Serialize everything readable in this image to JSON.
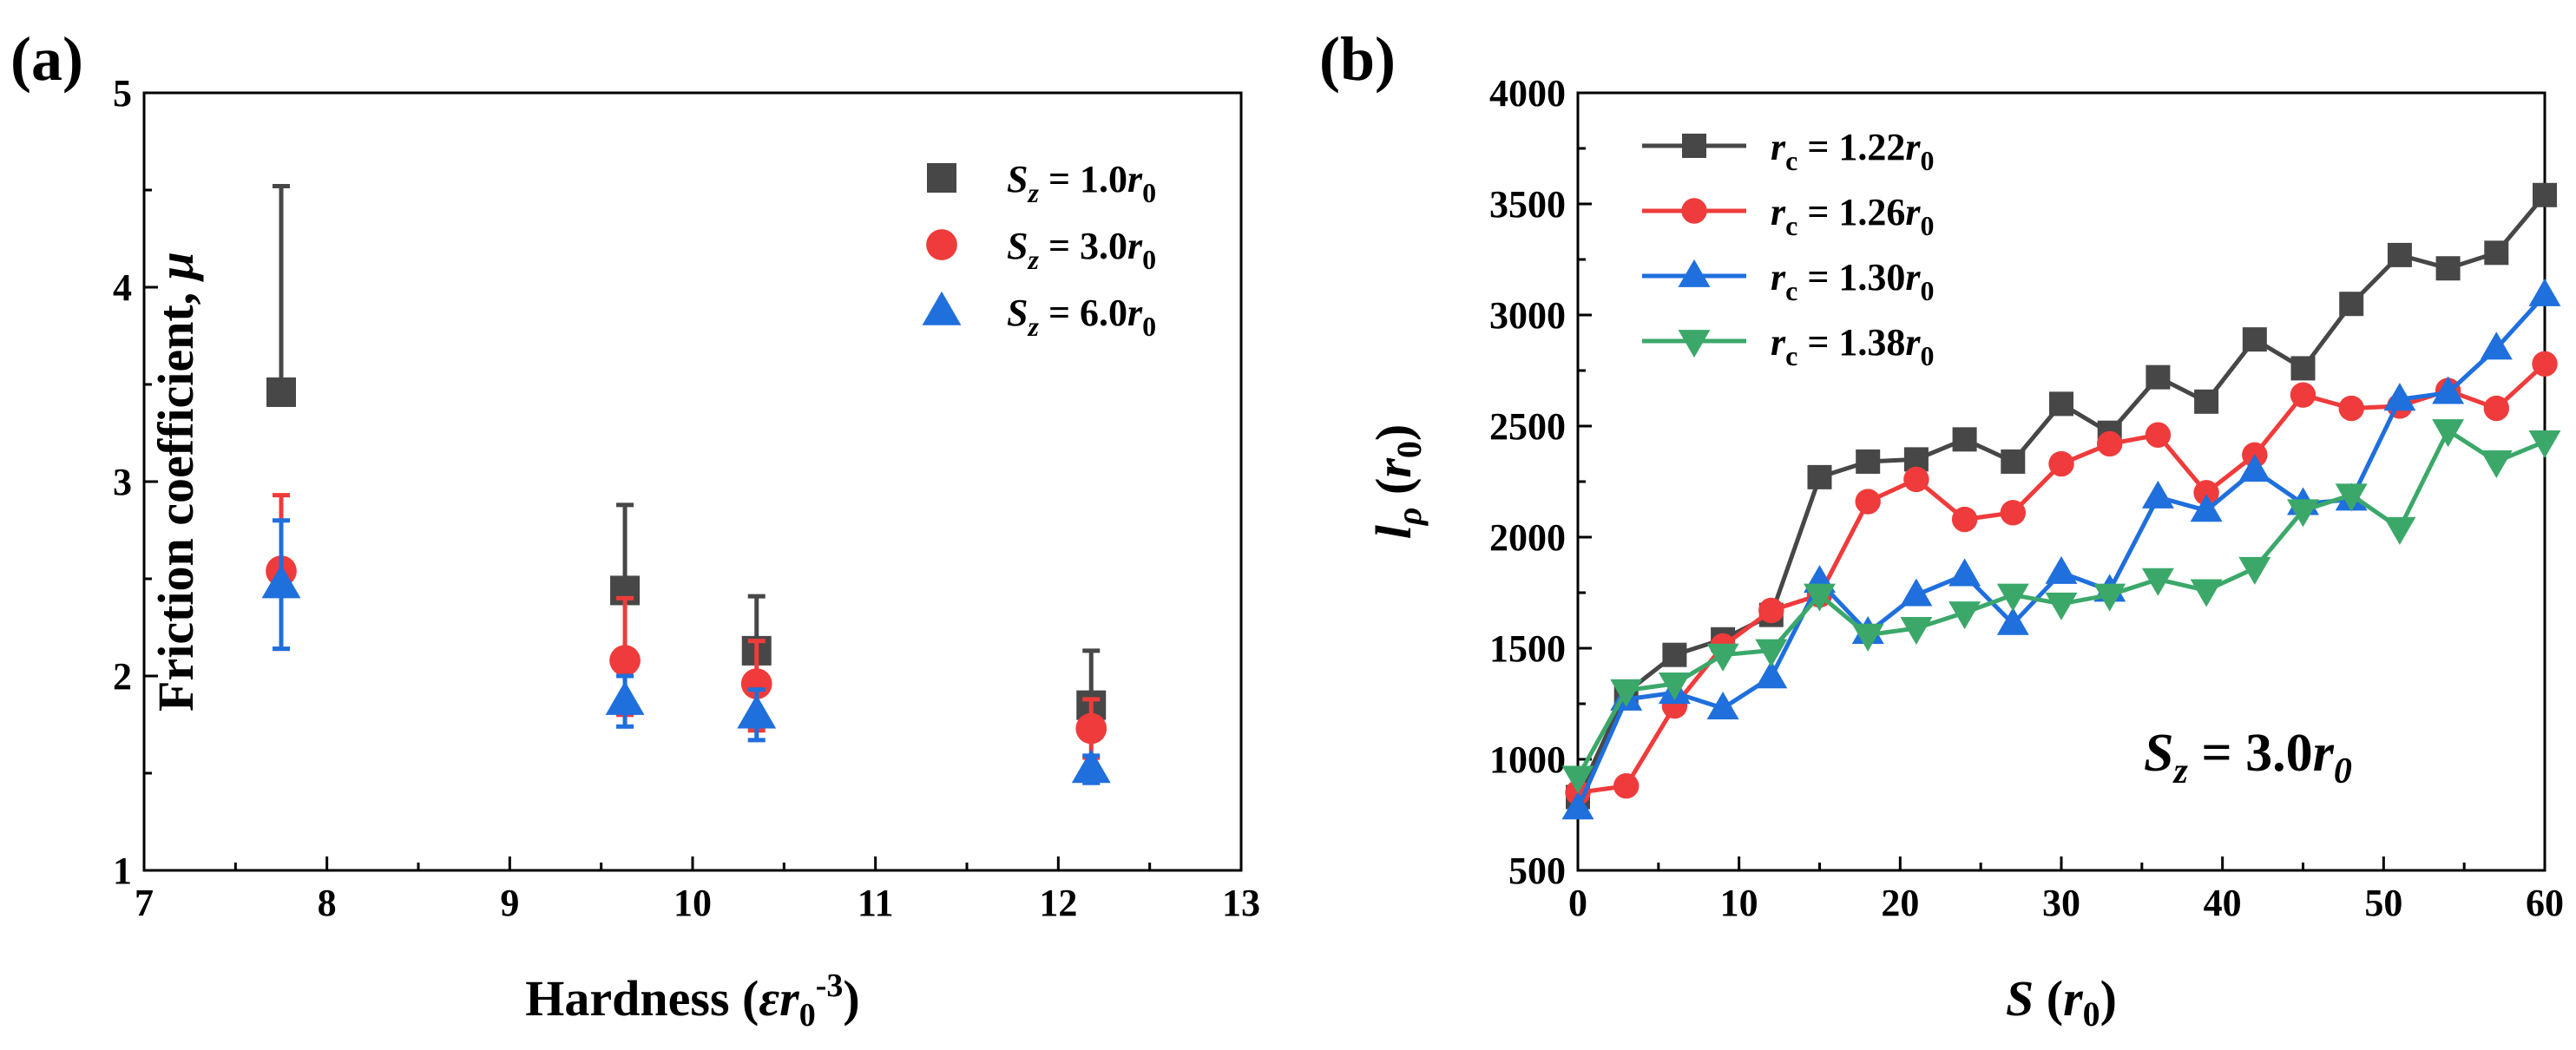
{
  "chart_data": [
    {
      "panel": "(a)",
      "type": "scatter",
      "xlabel": "Hardness (εr0-3)",
      "xlabel_parts": [
        "Hardness (",
        "ε",
        "r",
        "0",
        "-3",
        ")"
      ],
      "ylabel": "Friction coefficient, μ",
      "ylabel_parts": [
        "Friction coefficient, ",
        "μ"
      ],
      "xlim": [
        7,
        13
      ],
      "ylim": [
        1,
        5
      ],
      "xticks": [
        "7",
        "8",
        "9",
        "10",
        "11",
        "12",
        "13"
      ],
      "yticks": [
        "1",
        "2",
        "3",
        "4",
        "5"
      ],
      "legend_position": "top-right",
      "series": [
        {
          "name": "Sz = 1.0r0",
          "legend": {
            "s": "S",
            "sub1": "z",
            "mid": " = 1.0",
            "r": "r",
            "sub2": "0"
          },
          "marker": "square",
          "color": "#474747",
          "x": [
            7.75,
            9.63,
            10.35,
            12.18
          ],
          "y": [
            3.46,
            2.44,
            2.13,
            1.85
          ],
          "err_low": [
            0,
            0,
            0,
            0
          ],
          "err_high": [
            1.06,
            0.44,
            0.28,
            0.28
          ]
        },
        {
          "name": "Sz = 3.0r0",
          "legend": {
            "s": "S",
            "sub1": "z",
            "mid": " = 3.0",
            "r": "r",
            "sub2": "0"
          },
          "marker": "circle",
          "color": "#ef3b3b",
          "x": [
            7.75,
            9.63,
            10.35,
            12.18
          ],
          "y": [
            2.54,
            2.08,
            1.96,
            1.73
          ],
          "err_low": [
            0.4,
            0.28,
            0.24,
            0.15
          ],
          "err_high": [
            0.39,
            0.32,
            0.22,
            0.15
          ]
        },
        {
          "name": "Sz = 6.0r0",
          "legend": {
            "s": "S",
            "sub1": "z",
            "mid": " = 6.0",
            "r": "r",
            "sub2": "0"
          },
          "marker": "triangle-up",
          "color": "#1f6fdd",
          "x": [
            7.75,
            9.63,
            10.35,
            12.18
          ],
          "y": [
            2.47,
            1.87,
            1.8,
            1.52
          ],
          "err_low": [
            0.33,
            0.13,
            0.13,
            0.07
          ],
          "err_high": [
            0.33,
            0.13,
            0.13,
            0.07
          ]
        }
      ]
    },
    {
      "panel": "(b)",
      "type": "line",
      "xlabel": "S (r0)",
      "xlabel_parts": [
        "S",
        " (",
        "r",
        "0",
        ")"
      ],
      "ylabel": "lρ (r0)",
      "ylabel_parts": [
        "l",
        "ρ",
        " (",
        "r",
        "0",
        ")"
      ],
      "xlim": [
        0,
        60
      ],
      "ylim": [
        500,
        4000
      ],
      "xticks": [
        "0",
        "10",
        "20",
        "30",
        "40",
        "50",
        "60"
      ],
      "yticks": [
        "500",
        "1000",
        "1500",
        "2000",
        "2500",
        "3000",
        "3500",
        "4000"
      ],
      "legend_position": "top-left",
      "annotation": "Sz = 3.0r0",
      "annotation_parts": [
        "S",
        "z",
        " = 3.0",
        "r",
        "0"
      ],
      "x": [
        0,
        3,
        6,
        9,
        12,
        15,
        18,
        21,
        24,
        27,
        30,
        33,
        36,
        39,
        42,
        45,
        48,
        51,
        54,
        57,
        60
      ],
      "series": [
        {
          "name": "rc = 1.22r0",
          "legend": {
            "r": "r",
            "sub1": "c",
            "mid": " = 1.22",
            "r2": "r",
            "sub2": "0"
          },
          "marker": "square",
          "color": "#474747",
          "values": [
            830,
            1300,
            1470,
            1540,
            1650,
            2270,
            2340,
            2350,
            2440,
            2340,
            2600,
            2470,
            2720,
            2610,
            2890,
            2760,
            3050,
            3270,
            3210,
            3280,
            3540
          ]
        },
        {
          "name": "rc = 1.26r0",
          "legend": {
            "r": "r",
            "sub1": "c",
            "mid": " = 1.26",
            "r2": "r",
            "sub2": "0"
          },
          "marker": "circle",
          "color": "#ef3b3b",
          "values": [
            850,
            880,
            1240,
            1510,
            1670,
            1740,
            2160,
            2260,
            2080,
            2110,
            2330,
            2420,
            2460,
            2200,
            2370,
            2640,
            2580,
            2590,
            2660,
            2580,
            2780
          ]
        },
        {
          "name": "rc = 1.30r0",
          "legend": {
            "r": "r",
            "sub1": "c",
            "mid": " = 1.30",
            "r2": "r",
            "sub2": "0"
          },
          "marker": "triangle-up",
          "color": "#1f6fdd",
          "values": [
            780,
            1270,
            1300,
            1230,
            1370,
            1800,
            1570,
            1740,
            1830,
            1610,
            1840,
            1760,
            2180,
            2120,
            2300,
            2150,
            2170,
            2620,
            2650,
            2850,
            3090
          ]
        },
        {
          "name": "rc = 1.38r0",
          "legend": {
            "r": "r",
            "sub1": "c",
            "mid": " = 1.38",
            "r2": "r",
            "sub2": "0"
          },
          "marker": "triangle-down",
          "color": "#3ba86a",
          "values": [
            920,
            1310,
            1340,
            1470,
            1490,
            1740,
            1560,
            1590,
            1660,
            1740,
            1700,
            1740,
            1810,
            1760,
            1860,
            2120,
            2190,
            2040,
            2480,
            2340,
            2430
          ]
        }
      ]
    }
  ]
}
